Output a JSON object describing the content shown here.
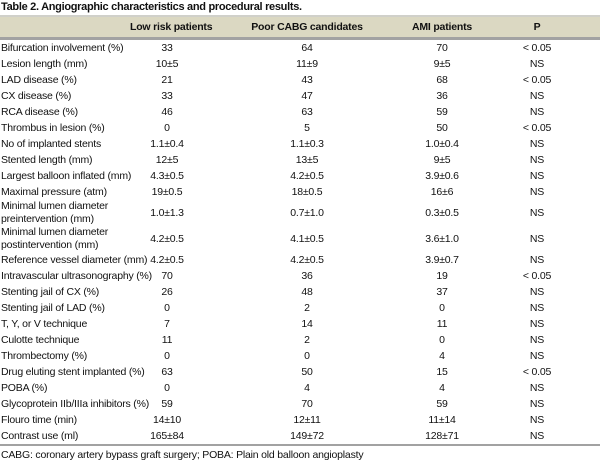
{
  "colors": {
    "header_bg": "#dbd8c2",
    "rule_dark": "#a2a2a2",
    "rule_light": "#d0d0ca"
  },
  "table": {
    "title": "Table 2. Angiographic characteristics and procedural results.",
    "columns": [
      "",
      "Low risk patients",
      "Poor CABG candidates",
      "AMI patients",
      "P"
    ],
    "rows": [
      {
        "label": "Bifurcation involvement (%)",
        "values": [
          "33",
          "64",
          "70",
          "< 0.05"
        ]
      },
      {
        "label": "Lesion length (mm)",
        "values": [
          "10±5",
          "11±9",
          "9±5",
          "NS"
        ]
      },
      {
        "label": "LAD disease (%)",
        "values": [
          "21",
          "43",
          "68",
          "< 0.05"
        ]
      },
      {
        "label": "CX disease (%)",
        "values": [
          "33",
          "47",
          "36",
          "NS"
        ]
      },
      {
        "label": "RCA disease (%)",
        "values": [
          "46",
          "63",
          "59",
          "NS"
        ]
      },
      {
        "label": "Thrombus in lesion (%)",
        "values": [
          "0",
          "5",
          "50",
          "< 0.05"
        ]
      },
      {
        "label": "No of implanted stents",
        "values": [
          "1.1±0.4",
          "1.1±0.3",
          "1.0±0.4",
          "NS"
        ]
      },
      {
        "label": "Stented length (mm)",
        "values": [
          "12±5",
          "13±5",
          "9±5",
          "NS"
        ]
      },
      {
        "label": "Largest balloon inflated (mm)",
        "values": [
          "4.3±0.5",
          "4.2±0.5",
          "3.9±0.6",
          "NS"
        ]
      },
      {
        "label": "Maximal pressure (atm)",
        "values": [
          "19±0.5",
          "18±0.5",
          "16±6",
          "NS"
        ]
      },
      {
        "label": "Minimal lumen diameter\npreintervention (mm)",
        "values": [
          "1.0±1.3",
          "0.7±1.0",
          "0.3±0.5",
          "NS"
        ]
      },
      {
        "label": "Minimal lumen diameter\npostintervention (mm)",
        "values": [
          "4.2±0.5",
          "4.1±0.5",
          "3.6±1.0",
          "NS"
        ]
      },
      {
        "label": "Reference vessel diameter (mm)",
        "values": [
          "4.2±0.5",
          "4.2±0.5",
          "3.9±0.7",
          "NS"
        ]
      },
      {
        "label": "Intravascular ultrasonography (%)",
        "values": [
          "70",
          "36",
          "19",
          "< 0.05"
        ]
      },
      {
        "label": "Stenting jail of CX (%)",
        "values": [
          "26",
          "48",
          "37",
          "NS"
        ]
      },
      {
        "label": "Stenting jail of LAD (%)",
        "values": [
          "0",
          "2",
          "0",
          "NS"
        ]
      },
      {
        "label": "T, Y, or V technique",
        "values": [
          "7",
          "14",
          "11",
          "NS"
        ]
      },
      {
        "label": "Culotte technique",
        "values": [
          "11",
          "2",
          "0",
          "NS"
        ]
      },
      {
        "label": "Thrombectomy (%)",
        "values": [
          "0",
          "0",
          "4",
          "NS"
        ]
      },
      {
        "label": "Drug eluting stent implanted (%)",
        "values": [
          "63",
          "50",
          "15",
          "< 0.05"
        ]
      },
      {
        "label": "POBA (%)",
        "values": [
          "0",
          "4",
          "4",
          "NS"
        ]
      },
      {
        "label": "Glycoprotein IIb/IIIa inhibitors (%)",
        "values": [
          "59",
          "70",
          "59",
          "NS"
        ]
      },
      {
        "label": "Flouro time (min)",
        "values": [
          "14±10",
          "12±11",
          "11±14",
          "NS"
        ]
      },
      {
        "label": "Contrast use (ml)",
        "values": [
          "165±84",
          "149±72",
          "128±71",
          "NS"
        ]
      }
    ],
    "footnote": "CABG: coronary artery bypass graft surgery; POBA: Plain old balloon angioplasty"
  }
}
